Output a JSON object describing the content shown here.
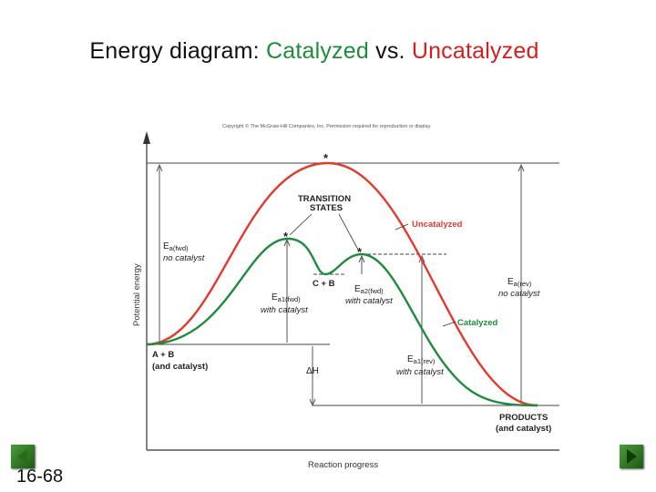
{
  "title": {
    "prefix": "Energy diagram: ",
    "catalyzed": "Catalyzed",
    "vs": " vs. ",
    "uncatalyzed": "Uncatalyzed"
  },
  "slide_number": "16-68",
  "diagram": {
    "copyright": "Copyright © The McGraw-Hill Companies, Inc. Permission required for reproduction or display.",
    "y_axis_label": "Potential energy",
    "x_axis_label": "Reaction progress",
    "transition_states": [
      "TRANSITION",
      "STATES"
    ],
    "uncatalyzed_label": "Uncatalyzed",
    "catalyzed_label": "Catalyzed",
    "intermediate_label": "C + B",
    "reactants": [
      "A + B",
      "(and catalyst)"
    ],
    "products": [
      "PRODUCTS",
      "(and catalyst)"
    ],
    "delta_h": "ΔH",
    "ea_fwd_uncat": {
      "sym": "E",
      "sub": "a(fwd)",
      "note": "no catalyst"
    },
    "ea_rev_uncat": {
      "sym": "E",
      "sub": "a(rev)",
      "note": "no catalyst"
    },
    "ea1_fwd_cat": {
      "sym": "E",
      "sub": "a1(fwd)",
      "note": "with catalyst"
    },
    "ea2_fwd_cat": {
      "sym": "E",
      "sub": "a2(fwd)",
      "note": "with catalyst"
    },
    "ea1_rev_cat": {
      "sym": "E",
      "sub": "a1(rev)",
      "note": "with catalyst"
    },
    "star": "*"
  },
  "colors": {
    "uncatalyzed": "#e23b2e",
    "catalyzed": "#1e8c3c",
    "title_catalyzed": "#1e8c3c",
    "title_uncatalyzed": "#d41f1f"
  }
}
